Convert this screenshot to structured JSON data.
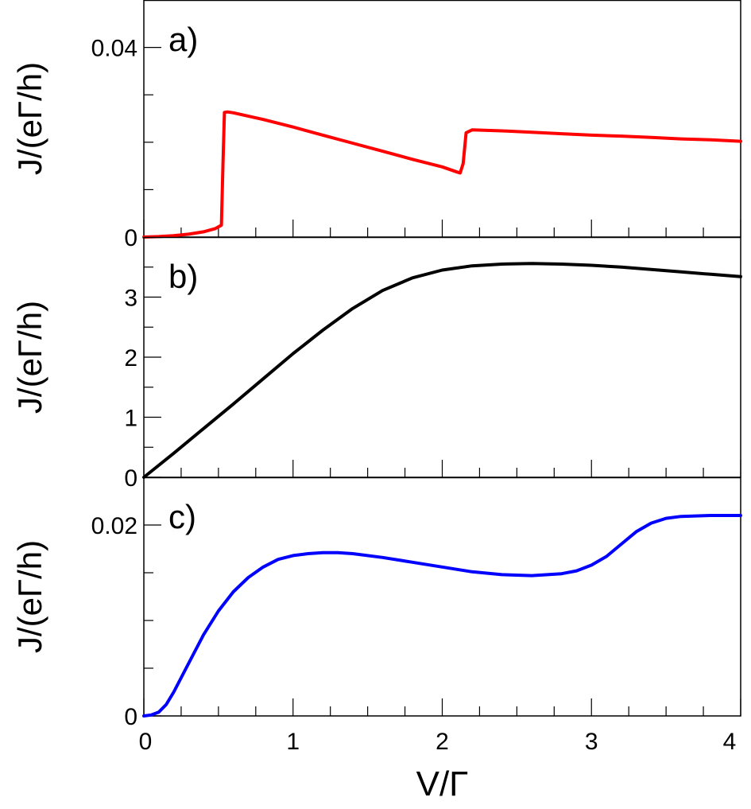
{
  "chart_data": [
    {
      "type": "line",
      "panel_label": "a)",
      "ylabel": "J/(eΓ/h)",
      "xlabel": "",
      "xlim": [
        0,
        4
      ],
      "ylim": [
        0,
        0.05
      ],
      "x_tick_values": [
        0,
        0.25,
        0.5,
        0.75,
        1,
        1.25,
        1.5,
        1.75,
        2,
        2.25,
        2.5,
        2.75,
        3,
        3.25,
        3.5,
        3.75,
        4
      ],
      "y_ticks": [
        {
          "value": 0,
          "label": "0"
        },
        {
          "value": 0.04,
          "label": "0.04"
        }
      ],
      "y_minor_ticks": [
        0.01,
        0.02,
        0.03
      ],
      "series": [
        {
          "name": "a",
          "color": "#ff0000",
          "x": [
            0,
            0.1,
            0.2,
            0.3,
            0.4,
            0.48,
            0.52,
            0.53,
            0.54,
            0.56,
            0.6,
            0.8,
            1.0,
            1.2,
            1.4,
            1.6,
            1.8,
            2.0,
            2.1,
            2.12,
            2.14,
            2.16,
            2.2,
            2.4,
            2.6,
            2.8,
            3.0,
            3.2,
            3.4,
            3.6,
            3.8,
            4.0
          ],
          "y": [
            0,
            0.0001,
            0.0003,
            0.0006,
            0.0011,
            0.0018,
            0.0025,
            0.015,
            0.0263,
            0.0264,
            0.0262,
            0.0248,
            0.0232,
            0.0215,
            0.0198,
            0.0181,
            0.0164,
            0.0148,
            0.0137,
            0.0135,
            0.0155,
            0.022,
            0.0226,
            0.0224,
            0.0221,
            0.0218,
            0.0215,
            0.0213,
            0.021,
            0.0207,
            0.0205,
            0.0202
          ]
        }
      ]
    },
    {
      "type": "line",
      "panel_label": "b)",
      "ylabel": "J/(eΓ/h)",
      "xlabel": "",
      "xlim": [
        0,
        4
      ],
      "ylim": [
        0,
        4.0
      ],
      "x_tick_values": [
        0,
        0.25,
        0.5,
        0.75,
        1,
        1.25,
        1.5,
        1.75,
        2,
        2.25,
        2.5,
        2.75,
        3,
        3.25,
        3.5,
        3.75,
        4
      ],
      "y_ticks": [
        {
          "value": 0,
          "label": "0"
        },
        {
          "value": 1,
          "label": "1"
        },
        {
          "value": 2,
          "label": "2"
        },
        {
          "value": 3,
          "label": "3"
        }
      ],
      "y_minor_ticks": [
        0.5,
        1.5,
        2.5,
        3.5
      ],
      "series": [
        {
          "name": "b",
          "color": "#000000",
          "x": [
            0,
            0.2,
            0.4,
            0.6,
            0.8,
            1.0,
            1.2,
            1.4,
            1.6,
            1.8,
            2.0,
            2.2,
            2.4,
            2.6,
            2.8,
            3.0,
            3.2,
            3.4,
            3.6,
            3.8,
            4.0
          ],
          "y": [
            0,
            0.4,
            0.81,
            1.22,
            1.64,
            2.06,
            2.45,
            2.81,
            3.11,
            3.32,
            3.45,
            3.52,
            3.55,
            3.56,
            3.55,
            3.53,
            3.5,
            3.46,
            3.42,
            3.38,
            3.34
          ]
        }
      ]
    },
    {
      "type": "line",
      "panel_label": "c)",
      "ylabel": "J/(eΓ/h)",
      "xlabel": "V/Γ",
      "xlim": [
        0,
        4
      ],
      "ylim": [
        0,
        0.025
      ],
      "x_tick_values": [
        0,
        0.25,
        0.5,
        0.75,
        1,
        1.25,
        1.5,
        1.75,
        2,
        2.25,
        2.5,
        2.75,
        3,
        3.25,
        3.5,
        3.75,
        4
      ],
      "x_ticks": [
        {
          "value": 0,
          "label": "0"
        },
        {
          "value": 1,
          "label": "1"
        },
        {
          "value": 2,
          "label": "2"
        },
        {
          "value": 3,
          "label": "3"
        },
        {
          "value": 4,
          "label": "4"
        }
      ],
      "y_ticks": [
        {
          "value": 0,
          "label": "0"
        },
        {
          "value": 0.02,
          "label": "0.02"
        }
      ],
      "y_minor_ticks": [
        0.005,
        0.01,
        0.015
      ],
      "series": [
        {
          "name": "c",
          "color": "#0000ff",
          "x": [
            0,
            0.05,
            0.1,
            0.15,
            0.2,
            0.3,
            0.4,
            0.5,
            0.6,
            0.7,
            0.8,
            0.9,
            1.0,
            1.1,
            1.2,
            1.3,
            1.4,
            1.6,
            1.8,
            2.0,
            2.2,
            2.4,
            2.6,
            2.8,
            2.9,
            3.0,
            3.1,
            3.2,
            3.3,
            3.4,
            3.5,
            3.6,
            3.8,
            4.0
          ],
          "y": [
            0,
            0.0001,
            0.0004,
            0.0012,
            0.0025,
            0.0055,
            0.0085,
            0.011,
            0.013,
            0.0145,
            0.0156,
            0.0164,
            0.0168,
            0.017,
            0.0171,
            0.0171,
            0.017,
            0.0166,
            0.0161,
            0.0156,
            0.0151,
            0.0148,
            0.0147,
            0.0149,
            0.0152,
            0.0158,
            0.0167,
            0.018,
            0.0193,
            0.0202,
            0.0207,
            0.0209,
            0.021,
            0.021
          ]
        }
      ]
    }
  ]
}
